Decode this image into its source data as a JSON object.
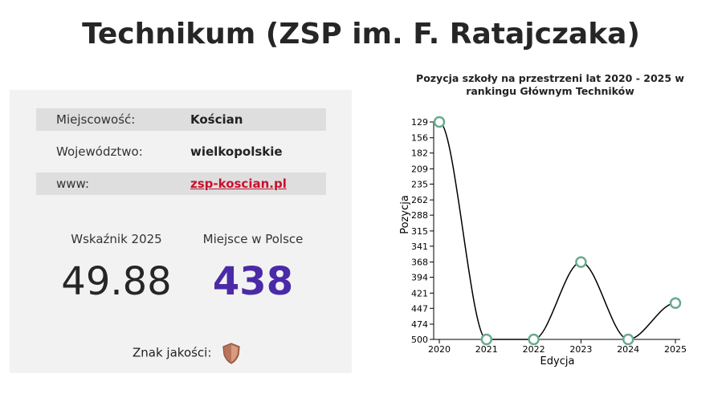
{
  "header": {
    "title": "Technikum (ZSP im. F. Ratajczaka)"
  },
  "info": {
    "rows": [
      [
        "Miejscowość:",
        "Kościan"
      ],
      [
        "Województwo:",
        "wielkopolskie"
      ],
      [
        "www:",
        "zsp-koscian.pl"
      ]
    ]
  },
  "stats": [
    {
      "label": "Wskaźnik 2025",
      "value": 49.88
    },
    {
      "label": "Miejsce w Polsce",
      "value": 438
    }
  ],
  "quality": {
    "label": "Znak jakości:"
  },
  "chart_data": {
    "type": "line",
    "title": "Pozycja szkoły na przestrzeni lat 2020 - 2025 w rankingu Głównym Techników",
    "x_label": "Edycja",
    "y_label": "Pozycja",
    "x": [
      2020,
      2021,
      2022,
      2023,
      2024,
      2025
    ],
    "values": [
      129,
      500,
      500,
      368,
      500,
      438
    ],
    "color": "#6aaa90",
    "line_color": "#000000",
    "xlim": [
      2020,
      2025
    ],
    "xticks": [
      2020,
      2021,
      2022,
      2023,
      2024,
      2025
    ],
    "ylim": [
      500,
      129
    ],
    "yticks": [
      129,
      156,
      182,
      209,
      235,
      262,
      288,
      315,
      341,
      368,
      394,
      421,
      447,
      474,
      500
    ]
  }
}
